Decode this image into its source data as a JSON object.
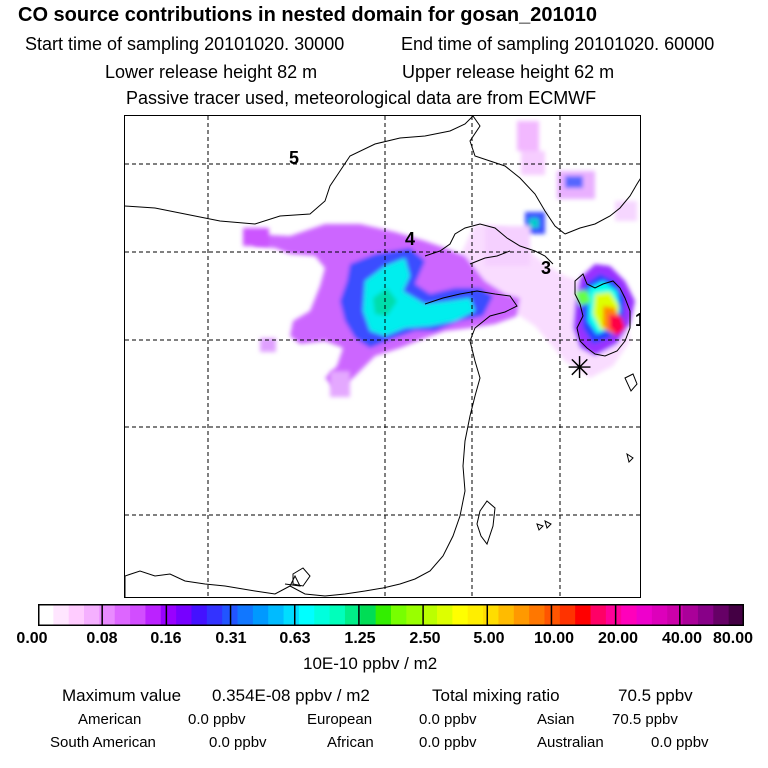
{
  "title": "CO  source contributions in nested domain for gosan_201010",
  "start_label": "Start time of sampling 20101020. 30000",
  "end_label": "End time of sampling 20101020. 60000",
  "lower_label": "Lower release height   82 m",
  "upper_label": "Upper release height   62 m",
  "tracer_label": "Passive tracer used, meteorological data are from ECMWF",
  "map": {
    "markers": [
      "1",
      "3",
      "4",
      "5"
    ],
    "receptor_symbol": "✳"
  },
  "colorbar": {
    "unit": "10E-10 ppbv / m2",
    "ticks": [
      "0.00",
      "0.08",
      "0.16",
      "0.31",
      "0.63",
      "1.25",
      "2.50",
      "5.00",
      "10.00",
      "20.00",
      "40.00",
      "80.00"
    ],
    "colors": [
      "#ffffff",
      "#ffe6ff",
      "#ffccff",
      "#f5b0ff",
      "#e98aff",
      "#dd66ff",
      "#d24dff",
      "#bb22ff",
      "#9900ff",
      "#7700ff",
      "#4411ff",
      "#3333ff",
      "#2255ff",
      "#1177ff",
      "#0099ff",
      "#00bbff",
      "#00ddff",
      "#00ffff",
      "#00ffdd",
      "#00ffbb",
      "#00ee88",
      "#00dd55",
      "#33ee00",
      "#77ff00",
      "#99ff00",
      "#bbff00",
      "#ddff00",
      "#ffff00",
      "#ffee00",
      "#ffdd00",
      "#ffbb00",
      "#ff9900",
      "#ff7700",
      "#ff5500",
      "#ff3300",
      "#ff0000",
      "#ff0066",
      "#ff0099",
      "#ff00bb",
      "#ee00cc",
      "#dd00bb",
      "#cc00aa",
      "#aa0099",
      "#880088",
      "#660066",
      "#440044"
    ]
  },
  "summary": {
    "max_label": "Maximum value",
    "max_value": "0.354E-08 ppbv / m2",
    "total_label": "Total mixing ratio",
    "total_value": "70.5 ppbv",
    "american_label": "American",
    "american_value": "0.0 ppbv",
    "european_label": "European",
    "european_value": "0.0 ppbv",
    "asian_label": "Asian",
    "asian_value": "70.5 ppbv",
    "southamerican_label": "South American",
    "southamerican_value": "0.0 ppbv",
    "african_label": "African",
    "african_value": "0.0 ppbv",
    "australian_label": "Australian",
    "australian_value": "0.0 ppbv"
  }
}
